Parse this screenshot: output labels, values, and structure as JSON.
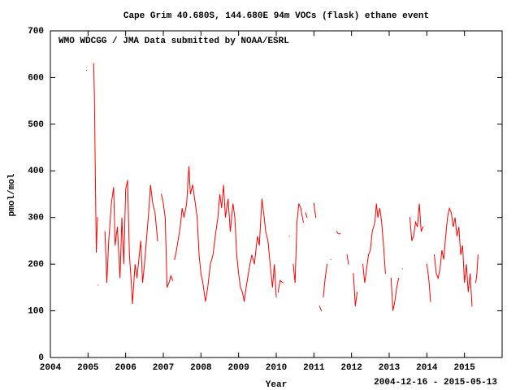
{
  "chart_data": {
    "type": "line",
    "title": "Cape Grim 40.680S, 144.680E 94m    VOCs (flask) ethane event",
    "annotation": "WMO WDCGG / JMA   Data submitted by NOAA/ESRL",
    "x_label": "Year",
    "y_label": "pmol/mol",
    "date_range": "2004-12-16 - 2015-05-13",
    "xlim": [
      2004,
      2016
    ],
    "xticks": [
      2004,
      2005,
      2006,
      2007,
      2008,
      2009,
      2010,
      2011,
      2012,
      2013,
      2014,
      2015
    ],
    "ylim": [
      0,
      700
    ],
    "yticks": [
      0,
      100,
      200,
      300,
      400,
      500,
      600,
      700
    ],
    "grid": false,
    "x": [
      2004.96,
      2005.06,
      2005.15,
      2005.17,
      2005.19,
      2005.22,
      2005.25,
      2005.26,
      2005.27,
      2005.36,
      2005.45,
      2005.5,
      2005.55,
      2005.62,
      2005.68,
      2005.72,
      2005.78,
      2005.85,
      2005.9,
      2005.95,
      2006.0,
      2006.05,
      2006.1,
      2006.15,
      2006.18,
      2006.25,
      2006.3,
      2006.4,
      2006.45,
      2006.5,
      2006.58,
      2006.62,
      2006.66,
      2006.72,
      2006.78,
      2006.85,
      2006.9,
      2006.95,
      2007.0,
      2007.05,
      2007.1,
      2007.15,
      2007.2,
      2007.25,
      2007.28,
      2007.3,
      2007.35,
      2007.45,
      2007.5,
      2007.55,
      2007.62,
      2007.68,
      2007.72,
      2007.78,
      2007.85,
      2007.9,
      2007.95,
      2008.0,
      2008.05,
      2008.12,
      2008.18,
      2008.25,
      2008.32,
      2008.38,
      2008.45,
      2008.5,
      2008.55,
      2008.6,
      2008.65,
      2008.72,
      2008.78,
      2008.85,
      2008.9,
      2008.95,
      2009.0,
      2009.05,
      2009.1,
      2009.15,
      2009.2,
      2009.28,
      2009.35,
      2009.42,
      2009.5,
      2009.55,
      2009.62,
      2009.68,
      2009.72,
      2009.78,
      2009.85,
      2009.9,
      2009.95,
      2010.0,
      2010.02,
      2010.05,
      2010.1,
      2010.18,
      2010.25,
      2010.35,
      2010.4,
      2010.45,
      2010.5,
      2010.55,
      2010.6,
      2010.65,
      2010.72,
      2010.75,
      2010.78,
      2010.82,
      2010.9,
      2011.0,
      2011.05,
      2011.1,
      2011.15,
      2011.2,
      2011.22,
      2011.25,
      2011.3,
      2011.35,
      2011.4,
      2011.45,
      2011.52,
      2011.6,
      2011.65,
      2011.7,
      2011.8,
      2011.88,
      2011.92,
      2012.0,
      2012.05,
      2012.1,
      2012.15,
      2012.22,
      2012.3,
      2012.35,
      2012.4,
      2012.45,
      2012.5,
      2012.55,
      2012.62,
      2012.66,
      2012.7,
      2012.75,
      2012.8,
      2012.85,
      2012.9,
      2012.98,
      2013.05,
      2013.1,
      2013.15,
      2013.2,
      2013.25,
      2013.3,
      2013.35,
      2013.45,
      2013.55,
      2013.6,
      2013.65,
      2013.7,
      2013.75,
      2013.8,
      2013.85,
      2013.9,
      2013.95,
      2014.0,
      2014.05,
      2014.1,
      2014.15,
      2014.2,
      2014.25,
      2014.3,
      2014.35,
      2014.4,
      2014.45,
      2014.5,
      2014.55,
      2014.6,
      2014.65,
      2014.7,
      2014.75,
      2014.8,
      2014.85,
      2014.9,
      2014.95,
      2015.0,
      2015.05,
      2015.1,
      2015.15,
      2015.2,
      2015.25,
      2015.3,
      2015.33,
      2015.36
    ],
    "series": [
      {
        "name": "ethane",
        "color": "#ff0000",
        "values": [
          615,
          null,
          630,
          560,
          420,
          225,
          300,
          null,
          155,
          null,
          270,
          160,
          250,
          330,
          365,
          240,
          280,
          170,
          300,
          200,
          360,
          380,
          220,
          160,
          115,
          200,
          170,
          250,
          160,
          200,
          280,
          320,
          370,
          330,
          310,
          250,
          null,
          350,
          330,
          300,
          150,
          160,
          175,
          165,
          null,
          210,
          230,
          280,
          320,
          300,
          330,
          410,
          350,
          370,
          330,
          300,
          220,
          180,
          160,
          120,
          150,
          200,
          220,
          260,
          300,
          350,
          320,
          370,
          300,
          340,
          270,
          330,
          300,
          220,
          180,
          150,
          140,
          120,
          150,
          190,
          220,
          200,
          260,
          240,
          340,
          300,
          270,
          250,
          190,
          150,
          200,
          130,
          null,
          140,
          165,
          160,
          null,
          260,
          null,
          200,
          160,
          290,
          330,
          320,
          290,
          null,
          310,
          300,
          null,
          330,
          300,
          null,
          110,
          100,
          null,
          130,
          170,
          200,
          null,
          210,
          null,
          270,
          265,
          265,
          null,
          220,
          200,
          null,
          180,
          110,
          140,
          null,
          200,
          160,
          190,
          220,
          230,
          270,
          290,
          330,
          300,
          320,
          290,
          240,
          180,
          null,
          170,
          100,
          120,
          150,
          170,
          null,
          190,
          null,
          300,
          250,
          260,
          290,
          280,
          330,
          270,
          280,
          null,
          200,
          170,
          120,
          null,
          220,
          180,
          170,
          190,
          230,
          210,
          260,
          300,
          320,
          310,
          280,
          300,
          260,
          280,
          220,
          240,
          160,
          200,
          140,
          180,
          110,
          null,
          160,
          180,
          220
        ]
      }
    ]
  }
}
